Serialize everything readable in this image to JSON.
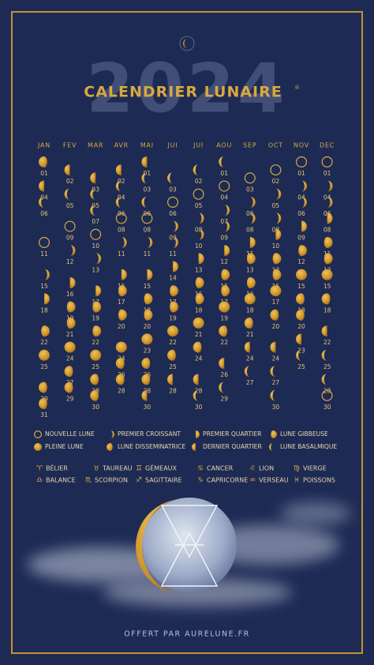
{
  "header": {
    "year": "2024",
    "title": "CALENDRIER LUNAIRE",
    "trademark": "®"
  },
  "months": [
    {
      "name": "JAN",
      "days": [
        [
          "01",
          "wng"
        ],
        [
          "04",
          "lq"
        ],
        [
          "06",
          "wnc"
        ],
        [
          "11",
          "new"
        ],
        [
          "15",
          "wxc"
        ],
        [
          "18",
          "fq"
        ],
        [
          "22",
          "wxg"
        ],
        [
          "25",
          "full"
        ],
        [
          "29",
          "wng"
        ],
        [
          "31",
          "wng"
        ]
      ]
    },
    {
      "name": "FEV",
      "days": [
        [
          "02",
          "lq"
        ],
        [
          "05",
          "wnc"
        ],
        [
          "09",
          "new"
        ],
        [
          "12",
          "wxc"
        ],
        [
          "16",
          "fq"
        ],
        [
          "19",
          "wxg"
        ],
        [
          "21",
          "wxg"
        ],
        [
          "24",
          "full"
        ],
        [
          "27",
          "wng"
        ],
        [
          "29",
          "wng"
        ]
      ]
    },
    {
      "name": "MAR",
      "days": [
        [
          "03",
          "lq"
        ],
        [
          "05",
          "wnc"
        ],
        [
          "07",
          "wnc"
        ],
        [
          "10",
          "new"
        ],
        [
          "13",
          "wxc"
        ],
        [
          "17",
          "fq"
        ],
        [
          "19",
          "wxg"
        ],
        [
          "22",
          "wxg"
        ],
        [
          "25",
          "full"
        ],
        [
          "28",
          "wng"
        ],
        [
          "30",
          "wng"
        ]
      ]
    },
    {
      "name": "AVR",
      "days": [
        [
          "02",
          "lq"
        ],
        [
          "04",
          "wnc"
        ],
        [
          "06",
          "wnc"
        ],
        [
          "08",
          "new"
        ],
        [
          "11",
          "wxc"
        ],
        [
          "15",
          "fq"
        ],
        [
          "17",
          "wxg"
        ],
        [
          "20",
          "wxg"
        ],
        [
          "24",
          "full"
        ],
        [
          "26",
          "wng"
        ],
        [
          "28",
          "wng"
        ]
      ]
    },
    {
      "name": "MAI",
      "days": [
        [
          "01",
          "lq"
        ],
        [
          "03",
          "wnc"
        ],
        [
          "06",
          "wnc"
        ],
        [
          "08",
          "new"
        ],
        [
          "11",
          "wxc"
        ],
        [
          "15",
          "fq"
        ],
        [
          "18",
          "wxg"
        ],
        [
          "20",
          "wxg"
        ],
        [
          "23",
          "full"
        ],
        [
          "26",
          "wng"
        ],
        [
          "28",
          "wng"
        ],
        [
          "30",
          "lq"
        ]
      ]
    },
    {
      "name": "JUI",
      "days": [
        [
          "03",
          "wnc"
        ],
        [
          "06",
          "new"
        ],
        [
          "09",
          "wxc"
        ],
        [
          "11",
          "wxc"
        ],
        [
          "14",
          "fq"
        ],
        [
          "17",
          "wxg"
        ],
        [
          "19",
          "wxg"
        ],
        [
          "22",
          "full"
        ],
        [
          "25",
          "wng"
        ],
        [
          "28",
          "lq"
        ]
      ]
    },
    {
      "name": "JUI",
      "days": [
        [
          "02",
          "wnc"
        ],
        [
          "05",
          "new"
        ],
        [
          "08",
          "wxc"
        ],
        [
          "10",
          "wxc"
        ],
        [
          "13",
          "fq"
        ],
        [
          "16",
          "wxg"
        ],
        [
          "18",
          "wxg"
        ],
        [
          "21",
          "full"
        ],
        [
          "24",
          "wng"
        ],
        [
          "28",
          "lq"
        ],
        [
          "30",
          "wnc"
        ]
      ]
    },
    {
      "name": "AOU",
      "days": [
        [
          "01",
          "wnc"
        ],
        [
          "04",
          "new"
        ],
        [
          "07",
          "wxc"
        ],
        [
          "09",
          "wxc"
        ],
        [
          "12",
          "fq"
        ],
        [
          "15",
          "wxg"
        ],
        [
          "17",
          "wxg"
        ],
        [
          "19",
          "full"
        ],
        [
          "22",
          "wng"
        ],
        [
          "26",
          "lq"
        ],
        [
          "29",
          "wnc"
        ]
      ]
    },
    {
      "name": "SEP",
      "days": [
        [
          "03",
          "new"
        ],
        [
          "06",
          "wxc"
        ],
        [
          "08",
          "wxc"
        ],
        [
          "11",
          "fq"
        ],
        [
          "13",
          "wxg"
        ],
        [
          "16",
          "wxg"
        ],
        [
          "18",
          "full"
        ],
        [
          "21",
          "wng"
        ],
        [
          "24",
          "lq"
        ],
        [
          "27",
          "wnc"
        ]
      ]
    },
    {
      "name": "OCT",
      "days": [
        [
          "02",
          "new"
        ],
        [
          "05",
          "wxc"
        ],
        [
          "08",
          "wxc"
        ],
        [
          "10",
          "fq"
        ],
        [
          "13",
          "wxg"
        ],
        [
          "15",
          "wxg"
        ],
        [
          "17",
          "full"
        ],
        [
          "20",
          "wng"
        ],
        [
          "24",
          "lq"
        ],
        [
          "27",
          "wnc"
        ],
        [
          "30",
          "wnc"
        ]
      ]
    },
    {
      "name": "NOV",
      "days": [
        [
          "01",
          "new"
        ],
        [
          "04",
          "wxc"
        ],
        [
          "06",
          "wxc"
        ],
        [
          "09",
          "fq"
        ],
        [
          "12",
          "wxg"
        ],
        [
          "15",
          "full"
        ],
        [
          "18",
          "wng"
        ],
        [
          "20",
          "wng"
        ],
        [
          "23",
          "lq"
        ],
        [
          "25",
          "wnc"
        ]
      ]
    },
    {
      "name": "DEC",
      "days": [
        [
          "01",
          "new"
        ],
        [
          "04",
          "wxc"
        ],
        [
          "06",
          "wxc"
        ],
        [
          "08",
          "fq"
        ],
        [
          "11",
          "wxg"
        ],
        [
          "13",
          "wxg"
        ],
        [
          "15",
          "full"
        ],
        [
          "18",
          "wng"
        ],
        [
          "22",
          "lq"
        ],
        [
          "25",
          "wnc"
        ],
        [
          "28",
          "wnc"
        ],
        [
          "30",
          "new"
        ]
      ]
    }
  ],
  "phases": [
    {
      "phase": "new",
      "label": "NOUVELLE LUNE"
    },
    {
      "phase": "wxc",
      "label": "PREMIER CROISSANT"
    },
    {
      "phase": "fq",
      "label": "PREMIER QUARTIER"
    },
    {
      "phase": "wxg",
      "label": "LUNE GIBBEUSE"
    },
    {
      "phase": "full",
      "label": "PLEINE LUNE"
    },
    {
      "phase": "wng",
      "label": "LUNE DISSEMINATRICE"
    },
    {
      "phase": "lq",
      "label": "DERNIER QUARTIER"
    },
    {
      "phase": "wnc",
      "label": "LUNE BASALMIQUE"
    }
  ],
  "zodiac": [
    {
      "symbol": "♈",
      "name": "BÉLIER"
    },
    {
      "symbol": "♉",
      "name": "TAUREAU"
    },
    {
      "symbol": "♊",
      "name": "GÉMEAUX"
    },
    {
      "symbol": "♋",
      "name": "CANCER"
    },
    {
      "symbol": "♌",
      "name": "LION"
    },
    {
      "symbol": "♍",
      "name": "VIERGE"
    },
    {
      "symbol": "♎",
      "name": "BALANCE"
    },
    {
      "symbol": "♏",
      "name": "SCORPION"
    },
    {
      "symbol": "♐",
      "name": "SAGITTAIRE"
    },
    {
      "symbol": "♑",
      "name": "CAPRICORNE"
    },
    {
      "symbol": "♒",
      "name": "VERSEAU"
    },
    {
      "symbol": "♓",
      "name": "POISSONS"
    }
  ],
  "footer": "OFFERT PAR AURELUNE.FR"
}
